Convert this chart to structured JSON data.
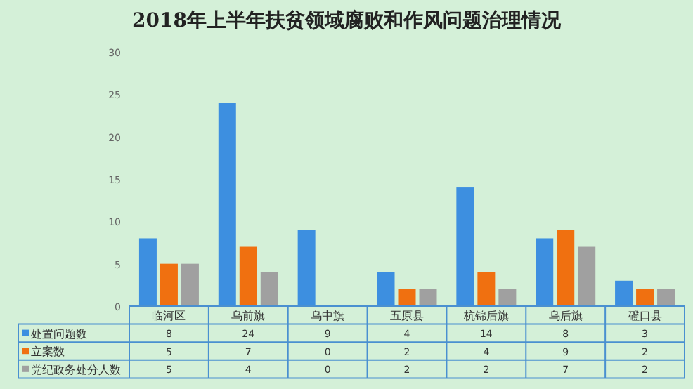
{
  "chart_data": {
    "type": "bar",
    "title": "2018年上半年扶贫领域腐败和作风问题治理情况",
    "categories": [
      "临河区",
      "乌前旗",
      "乌中旗",
      "五原县",
      "杭锦后旗",
      "乌后旗",
      "磴口县"
    ],
    "series": [
      {
        "name": "处置问题数",
        "color": "#3d8fe0",
        "values": [
          8,
          24,
          9,
          4,
          14,
          8,
          3
        ]
      },
      {
        "name": "立案数",
        "color": "#f07010",
        "values": [
          5,
          7,
          0,
          2,
          4,
          9,
          2
        ]
      },
      {
        "name": "党纪政务处分人数",
        "color": "#a0a0a0",
        "values": [
          5,
          4,
          0,
          2,
          2,
          7,
          2
        ]
      }
    ],
    "ylim": [
      0,
      30
    ],
    "yticks": [
      0,
      5,
      10,
      15,
      20,
      25,
      30
    ],
    "data_labels": true,
    "legend": "bottom",
    "grid": false
  }
}
